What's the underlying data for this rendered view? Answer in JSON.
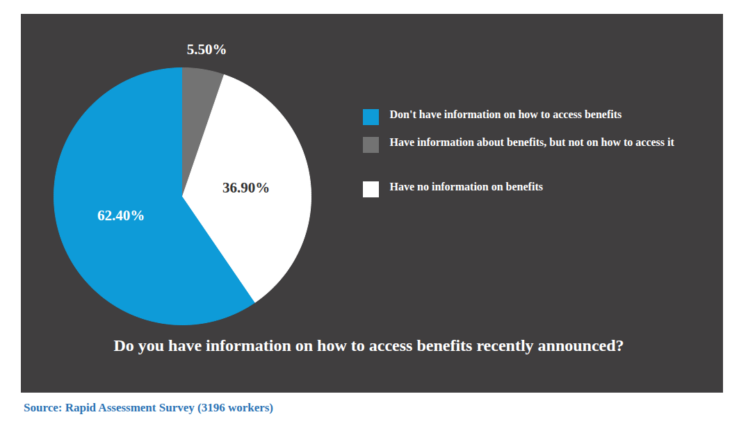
{
  "chart_data": {
    "type": "pie",
    "title": "Do you have information on how to access benefits recently announced?",
    "source": "Source: Rapid Assessment Survey (3196 workers)",
    "categories": [
      "Don't have information on how to access benefits",
      "Have information about benefits, but not on how to access it",
      "Have no information on benefits"
    ],
    "values": [
      62.4,
      5.5,
      36.9
    ],
    "value_labels": [
      "62.40%",
      "5.50%",
      "36.90%"
    ],
    "colors": [
      "#0e9bd8",
      "#737373",
      "#ffffff"
    ],
    "legend": "right",
    "data_labels": true
  }
}
